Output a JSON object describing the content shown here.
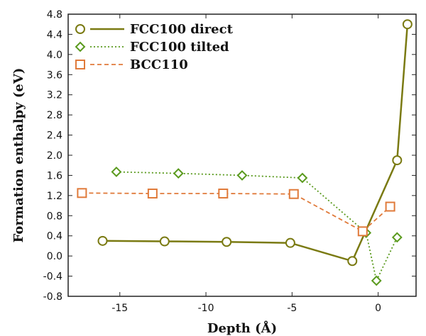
{
  "chart_data": {
    "type": "line",
    "xlabel": "Depth (Å)",
    "ylabel": "Formation enthalpy (eV)",
    "xlim": [
      -18,
      2.2
    ],
    "ylim": [
      -0.8,
      4.8
    ],
    "x_ticks": [
      -15,
      -10,
      -5,
      0
    ],
    "x_tick_labels": [
      "-15",
      "-10",
      "-5",
      "0"
    ],
    "y_ticks": [
      -0.8,
      -0.4,
      0.0,
      0.4,
      0.8,
      1.2,
      1.6,
      2.0,
      2.4,
      2.8,
      3.2,
      3.6,
      4.0,
      4.4,
      4.8
    ],
    "y_tick_labels": [
      "-0.8",
      "-0.4",
      "0.0",
      "0.4",
      "0.8",
      "1.2",
      "1.6",
      "2.0",
      "2.4",
      "2.8",
      "3.2",
      "3.6",
      "4.0",
      "4.4",
      "4.8"
    ],
    "grid": false,
    "legend_position": "top-left",
    "series": [
      {
        "name": "FCC100 direct",
        "marker": "circle",
        "line_style": "solid",
        "color": "#7a7a12",
        "x": [
          -16.0,
          -12.4,
          -8.8,
          -5.1,
          -1.5,
          1.1,
          1.7
        ],
        "y": [
          0.3,
          0.29,
          0.28,
          0.26,
          -0.1,
          1.9,
          4.6
        ]
      },
      {
        "name": "FCC100 tilted",
        "marker": "diamond",
        "line_style": "dotted",
        "color": "#5a9a1e",
        "x": [
          -15.2,
          -11.6,
          -7.9,
          -4.4,
          -0.7,
          -0.1,
          1.1
        ],
        "y": [
          1.67,
          1.64,
          1.6,
          1.55,
          0.46,
          -0.49,
          0.37
        ]
      },
      {
        "name": "BCC110",
        "marker": "square",
        "line_style": "dashed",
        "color": "#e07a3a",
        "x": [
          -17.2,
          -13.1,
          -9.0,
          -4.9,
          -0.9,
          0.7
        ],
        "y": [
          1.25,
          1.24,
          1.24,
          1.23,
          0.49,
          0.98
        ]
      }
    ]
  }
}
